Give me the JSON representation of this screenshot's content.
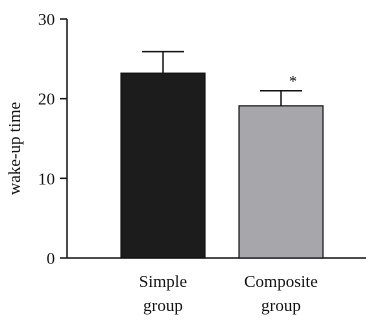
{
  "chart_data": {
    "type": "bar",
    "categories": [
      [
        "Simple",
        "group"
      ],
      [
        "Composite",
        "group"
      ]
    ],
    "values": [
      23.2,
      19.1
    ],
    "errors": [
      2.7,
      1.9
    ],
    "bar_colors": [
      "#1c1c1c",
      "#a7a7ab"
    ],
    "annotations": [
      "",
      "*"
    ],
    "ylabel": "wake-up time",
    "xlabel": "",
    "title": "",
    "ylim": [
      0,
      30
    ],
    "yticks": [
      0,
      10,
      20,
      30
    ],
    "grid": false,
    "legend": "none"
  }
}
